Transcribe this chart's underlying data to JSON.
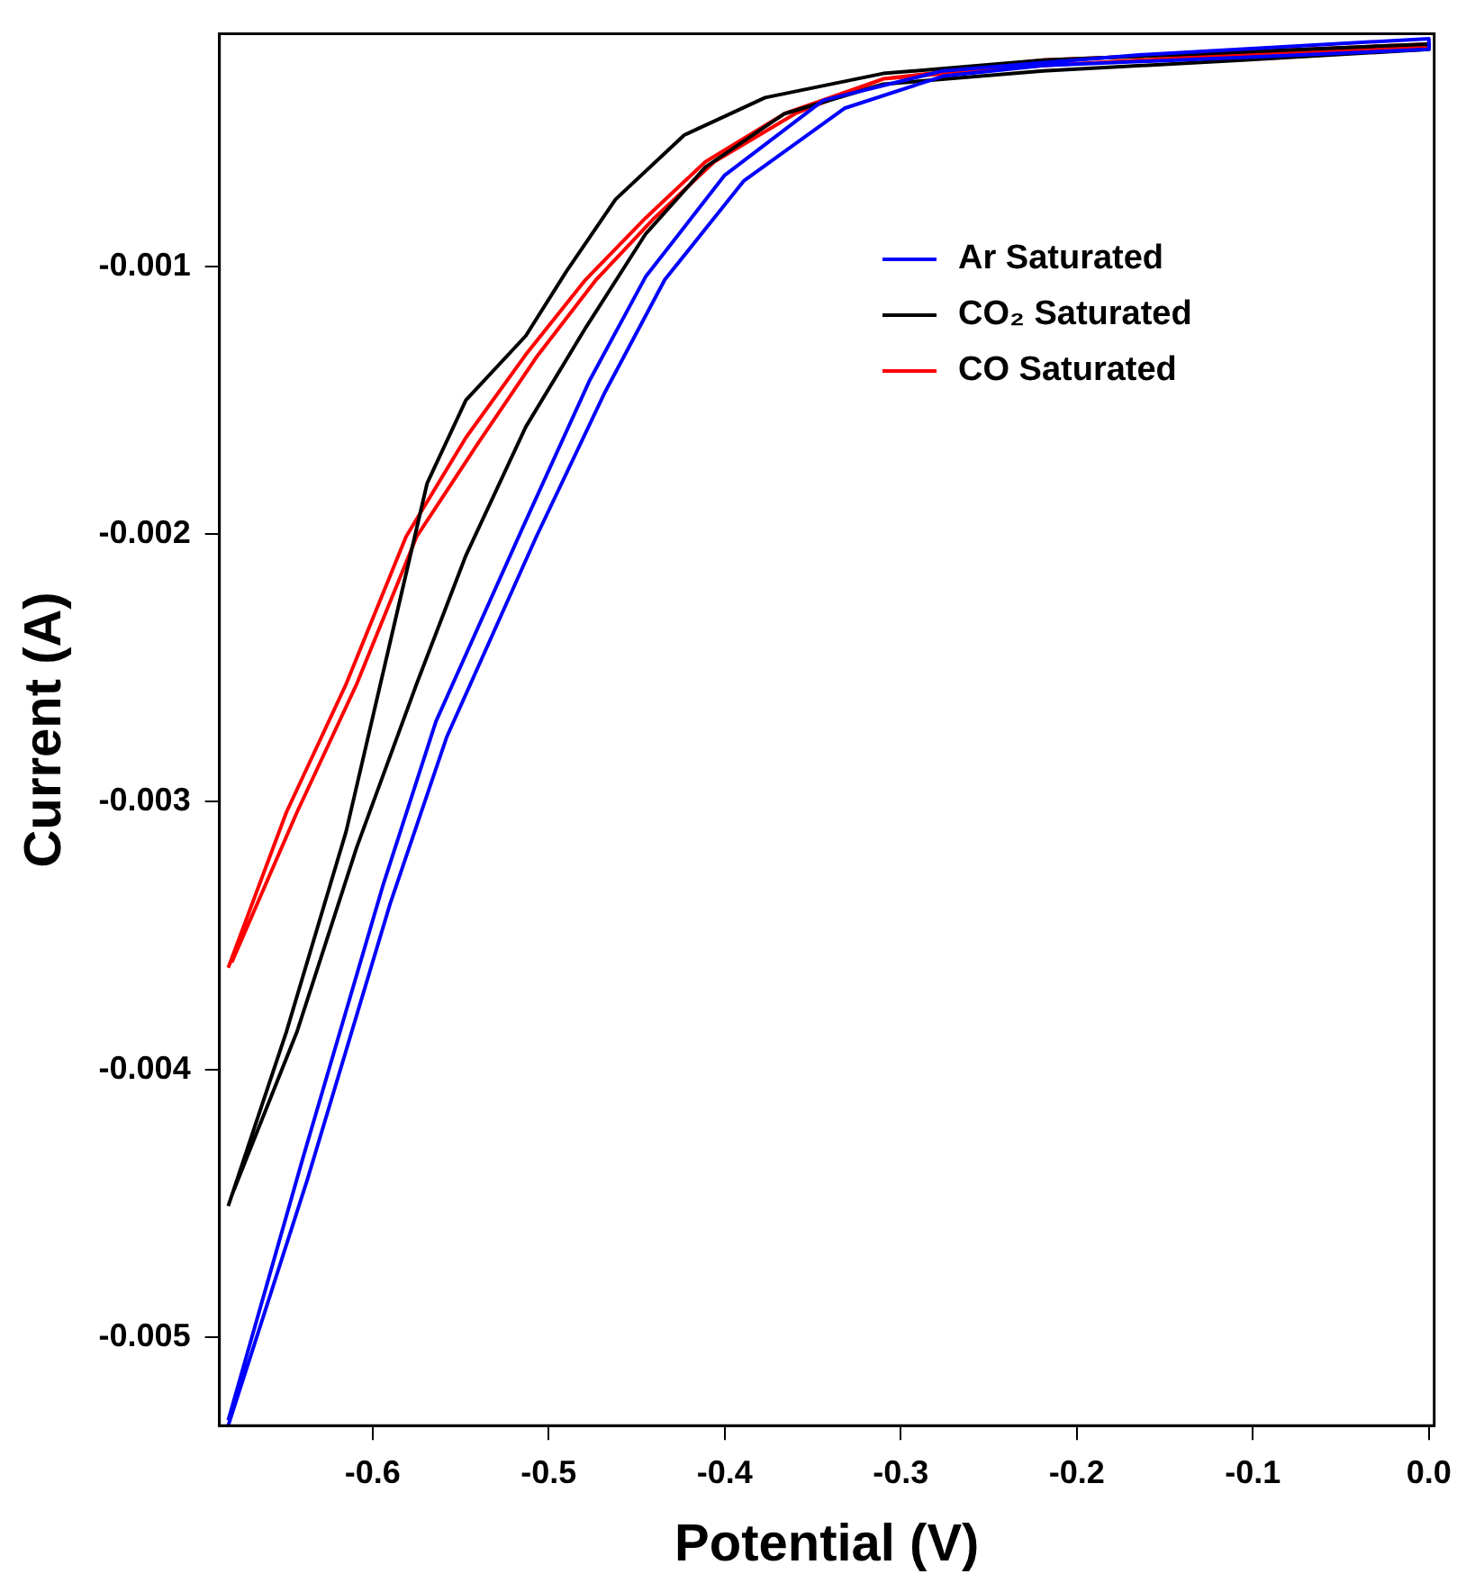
{
  "chart_data": {
    "type": "line",
    "xlabel": "Potential (V)",
    "ylabel": "Current (A)",
    "xlim": [
      -0.687,
      0.003
    ],
    "ylim": [
      -0.00533,
      -0.000132
    ],
    "xticks": [
      -0.6,
      -0.5,
      -0.4,
      -0.3,
      -0.2,
      -0.1,
      {
        "value": 0,
        "label": "0.0"
      }
    ],
    "yticks": [
      -0.005,
      -0.004,
      -0.003,
      -0.002,
      -0.001
    ],
    "grid": false,
    "legend": "top right",
    "marker": "none",
    "line_style": "solid",
    "series": [
      {
        "name": "Ar Saturated",
        "color": "#0000ff",
        "x": [
          -0.682,
          -0.637,
          -0.59,
          -0.558,
          -0.507,
          -0.468,
          -0.434,
          -0.389,
          -0.332,
          -0.276,
          -0.219,
          -0.106,
          0.0,
          0.0,
          -0.163,
          -0.276,
          -0.344,
          -0.4,
          -0.445,
          -0.477,
          -0.515,
          -0.564,
          -0.594,
          -0.64,
          -0.682
        ],
        "values": [
          -0.00533,
          -0.00441,
          -0.00338,
          -0.00276,
          -0.00201,
          -0.00147,
          -0.00105,
          -0.00068,
          -0.00041,
          -0.00029,
          -0.00025,
          -0.00022,
          -0.00019,
          -0.00015,
          -0.00021,
          -0.00027,
          -0.00038,
          -0.00066,
          -0.00104,
          -0.00143,
          -0.00198,
          -0.0027,
          -0.00331,
          -0.00434,
          -0.00531
        ]
      },
      {
        "name": "CO₂ Saturated",
        "color": "#000000",
        "x": [
          -0.682,
          -0.649,
          -0.615,
          -0.586,
          -0.569,
          -0.547,
          -0.513,
          -0.49,
          -0.462,
          -0.423,
          -0.377,
          -0.31,
          -0.219,
          -0.106,
          0.0,
          0.0,
          -0.106,
          -0.219,
          -0.31,
          -0.366,
          -0.411,
          -0.445,
          -0.479,
          -0.513,
          -0.547,
          -0.575,
          -0.609,
          -0.643,
          -0.68
        ],
        "values": [
          -0.00451,
          -0.00386,
          -0.00311,
          -0.00229,
          -0.00181,
          -0.0015,
          -0.00126,
          -0.00102,
          -0.00075,
          -0.00051,
          -0.00037,
          -0.00028,
          -0.00023,
          -0.0002,
          -0.00017,
          -0.00019,
          -0.00023,
          -0.00027,
          -0.00032,
          -0.00043,
          -0.00063,
          -0.00088,
          -0.00123,
          -0.0016,
          -0.00208,
          -0.00256,
          -0.00317,
          -0.00386,
          -0.00447
        ]
      },
      {
        "name": "CO Saturated",
        "color": "#ff0000",
        "x": [
          -0.682,
          -0.649,
          -0.615,
          -0.581,
          -0.547,
          -0.513,
          -0.479,
          -0.445,
          -0.411,
          -0.366,
          -0.31,
          -0.219,
          -0.106,
          0.0,
          0.0,
          -0.106,
          -0.219,
          -0.31,
          -0.36,
          -0.406,
          -0.44,
          -0.473,
          -0.507,
          -0.541,
          -0.575,
          -0.609,
          -0.643,
          -0.68
        ],
        "values": [
          -0.00362,
          -0.00304,
          -0.00256,
          -0.00201,
          -0.00164,
          -0.00133,
          -0.00105,
          -0.00082,
          -0.00061,
          -0.00043,
          -0.0003,
          -0.00023,
          -0.0002,
          -0.00017,
          -0.00018,
          -0.00021,
          -0.00025,
          -0.0003,
          -0.00043,
          -0.00061,
          -0.00082,
          -0.00105,
          -0.00134,
          -0.00167,
          -0.00201,
          -0.00256,
          -0.00304,
          -0.0036
        ]
      }
    ]
  }
}
